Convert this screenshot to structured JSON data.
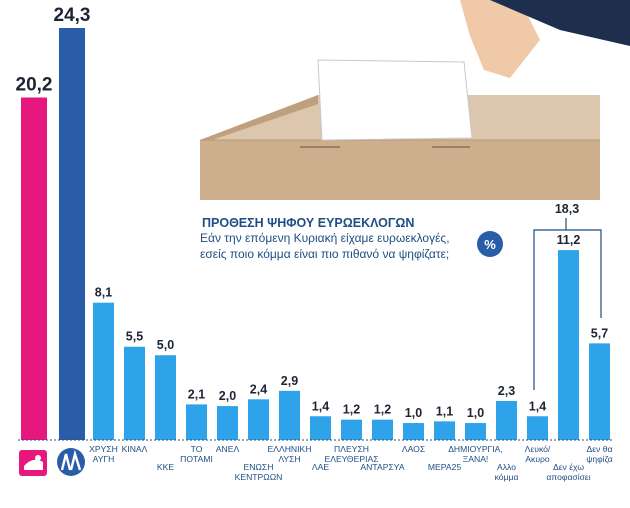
{
  "title": "ΠΡΟΘΕΣΗ ΨΗΦΟΥ ΕΥΡΩΕΚΛΟΓΩΝ",
  "subtitle_line1": "Εάν την επόμενη Κυριακή είχαμε ευρωεκλογές,",
  "subtitle_line2": "εσείς ποιο κόμμα είναι πιο πιθανό να ψηφίζατε;",
  "percent_badge": "%",
  "bracket_total": "18,3",
  "colors": {
    "pasok": "#e6177d",
    "nd": "#2a5da8",
    "others": "#2fa3ea",
    "text": "#1e4e84",
    "badge": "#2a5da8"
  },
  "icons": [
    "ballot-box-photo",
    "pasok-logo",
    "nd-logo"
  ],
  "chart_data": {
    "type": "bar",
    "title": "ΠΡΟΘΕΣΗ ΨΗΦΟΥ ΕΥΡΩΕΚΛΟΓΩΝ",
    "xlabel": "",
    "ylabel": "",
    "unit": "%",
    "ylim": [
      0,
      24.3
    ],
    "categories": [
      "",
      "",
      "ΧΡΥΣΗ ΑΥΓΗ",
      "ΚΙΝΑΛ",
      "ΚΚΕ",
      "ΤΟ ΠΟΤΑΜΙ",
      "ΑΝΕΛ",
      "ΕΝΩΣΗ ΚΕΝΤΡΩΩΝ",
      "ΕΛΛΗΝΙΚΗ ΛΥΣΗ",
      "ΛΑΕ",
      "ΠΛΕΥΣΗ ΕΛΕΥΘΕΡΙΑΣ",
      "ΑΝΤΑΡΣΥΑ",
      "ΛΑΟΣ",
      "ΜΕΡΑ25",
      "ΔΗΜΙΟΥΡΓΙΑ, ΞΑΝΑ!",
      "Αλλο κόμμα",
      "Λευκό/ Ακυρο",
      "Δεν έχω αποφασίσει",
      "Δεν θα ψηφίζα"
    ],
    "values": [
      20.2,
      24.3,
      8.1,
      5.5,
      5.0,
      2.1,
      2.0,
      2.4,
      2.9,
      1.4,
      1.2,
      1.2,
      1.0,
      1.1,
      1.0,
      2.3,
      1.4,
      11.2,
      5.7
    ],
    "value_labels": [
      "20,2",
      "24,3",
      "8,1",
      "5,5",
      "5,0",
      "2,1",
      "2,0",
      "2,4",
      "2,9",
      "1,4",
      "1,2",
      "1,2",
      "1,0",
      "1,1",
      "1,0",
      "2,3",
      "1,4",
      "11,2",
      "5,7"
    ],
    "bar_colors": [
      "#e6177d",
      "#2a5da8",
      "#2fa3ea",
      "#2fa3ea",
      "#2fa3ea",
      "#2fa3ea",
      "#2fa3ea",
      "#2fa3ea",
      "#2fa3ea",
      "#2fa3ea",
      "#2fa3ea",
      "#2fa3ea",
      "#2fa3ea",
      "#2fa3ea",
      "#2fa3ea",
      "#2fa3ea",
      "#2fa3ea",
      "#2fa3ea",
      "#2fa3ea"
    ],
    "grid": false,
    "legend": "none"
  }
}
